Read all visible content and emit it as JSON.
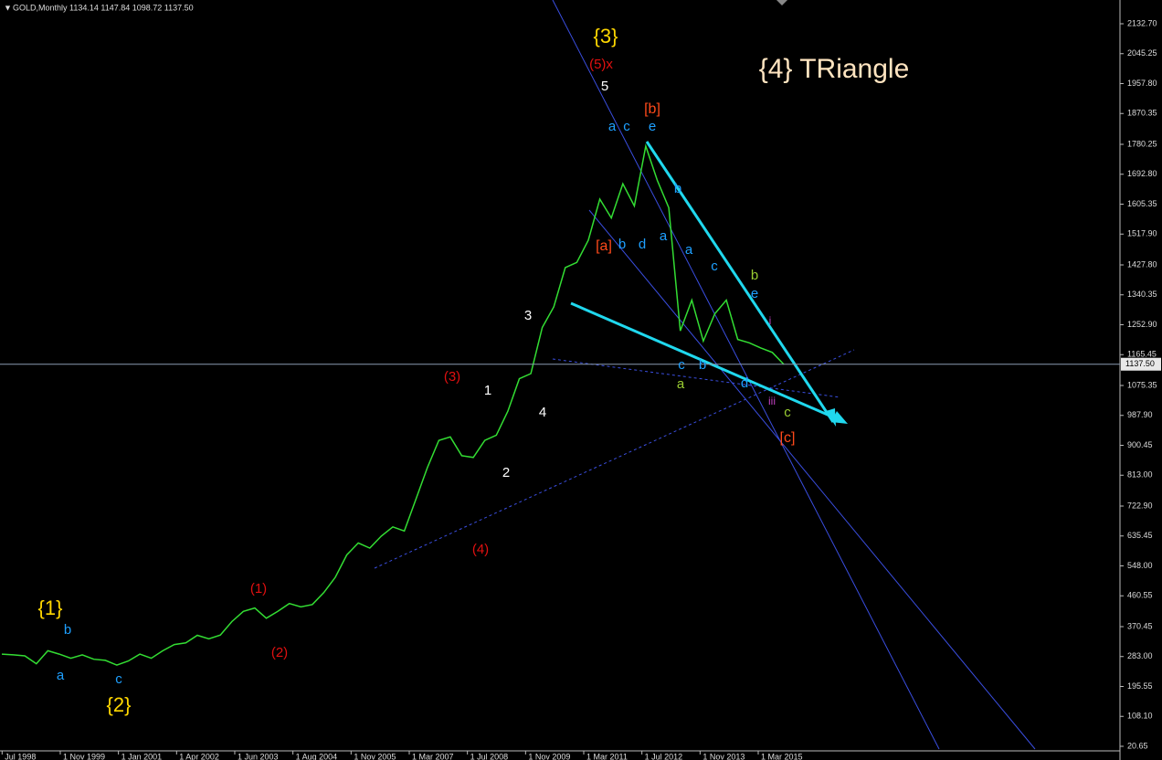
{
  "chart_data": {
    "type": "line",
    "header": "GOLD,Monthly  1134.14 1147.84 1098.72 1137.50",
    "color": "#33dd33",
    "values": [
      290,
      288,
      285,
      262,
      300,
      290,
      278,
      288,
      275,
      272,
      258,
      270,
      290,
      278,
      300,
      318,
      323,
      345,
      335,
      346,
      385,
      415,
      425,
      395,
      415,
      438,
      428,
      435,
      470,
      515,
      580,
      615,
      600,
      635,
      662,
      650,
      742,
      835,
      915,
      925,
      870,
      865,
      915,
      930,
      1000,
      1095,
      1110,
      1245,
      1305,
      1420,
      1435,
      1500,
      1620,
      1565,
      1665,
      1600,
      1775,
      1675,
      1595,
      1235,
      1325,
      1205,
      1285,
      1325,
      1210,
      1200,
      1185,
      1172,
      1137
    ],
    "ylim": [
      20.65,
      2132.7
    ],
    "yticks": [
      20.65,
      {
        "value": 108.1,
        "label": "108.10"
      },
      195.55,
      {
        "value": 283,
        "label": "283.00"
      },
      370.45,
      460.55,
      {
        "value": 548,
        "label": "548.00"
      },
      635.45,
      {
        "value": 722.9,
        "label": "722.90"
      },
      {
        "value": 813,
        "label": "813.00"
      },
      900.45,
      {
        "value": 987.9,
        "label": "987.90"
      },
      1075.35,
      1165.45,
      {
        "value": 1252.9,
        "label": "1252.90"
      },
      1340.35,
      {
        "value": 1427.8,
        "label": "1427.80"
      },
      {
        "value": 1517.9,
        "label": "1517.90"
      },
      1605.35,
      {
        "value": 1692.8,
        "label": "1692.80"
      },
      1780.25,
      1870.35,
      {
        "value": 1957.8,
        "label": "1957.80"
      },
      2045.25,
      {
        "value": 2132.7,
        "label": "2132.70"
      }
    ],
    "current_price": {
      "value": 1137.5,
      "label": "1137.50"
    },
    "xticks": [
      "Jul 1998",
      "1 Nov 1999",
      "1 Jan 2001",
      "1 Apr 2002",
      "1 Jun 2003",
      "1 Aug 2004",
      "1 Nov 2005",
      "1 Mar 2007",
      "1 Jul 2008",
      "1 Nov 2009",
      "1 Mar 2011",
      "1 Jul 2012",
      "1 Nov 2013",
      "1 Mar 2015"
    ],
    "annotations": [
      {
        "text": "{3}",
        "color": "#ffd700"
      },
      {
        "text": "(5)x",
        "color": "#e01010"
      },
      {
        "text": "5",
        "color": "#ffffff"
      },
      {
        "text": "[b]",
        "color": "#ff4a1a"
      },
      {
        "text": "a",
        "color": "#1ea0ff"
      },
      {
        "text": "c",
        "color": "#1ea0ff"
      },
      {
        "text": "e",
        "color": "#1ea0ff"
      },
      {
        "text": "{4} TRiangle",
        "color": "#ffe4c0"
      },
      {
        "text": "[a]",
        "color": "#ff4a1a"
      },
      {
        "text": "b",
        "color": "#1ea0ff"
      },
      {
        "text": "d",
        "color": "#1ea0ff"
      },
      {
        "text": "a",
        "color": "#1ea0ff"
      },
      {
        "text": "a",
        "color": "#1ea0ff"
      },
      {
        "text": "b",
        "color": "#1ea0ff"
      },
      {
        "text": "c",
        "color": "#1ea0ff"
      },
      {
        "text": "b",
        "color": "#9acd32"
      },
      {
        "text": "e",
        "color": "#1ea0ff"
      },
      {
        "text": "i",
        "color": "#c040c0"
      },
      {
        "text": "c",
        "color": "#1ea0ff"
      },
      {
        "text": "b",
        "color": "#1ea0ff"
      },
      {
        "text": "a",
        "color": "#9acd32"
      },
      {
        "text": "d",
        "color": "#1ea0ff"
      },
      {
        "text": "iii",
        "color": "#c040c0"
      },
      {
        "text": "c",
        "color": "#9acd32"
      },
      {
        "text": "[c]",
        "color": "#ff4a1a"
      },
      {
        "text": "3",
        "color": "#ffffff"
      },
      {
        "text": "1",
        "color": "#ffffff"
      },
      {
        "text": "4",
        "color": "#ffffff"
      },
      {
        "text": "2",
        "color": "#ffffff"
      },
      {
        "text": "(3)",
        "color": "#e01010"
      },
      {
        "text": "(4)",
        "color": "#e01010"
      },
      {
        "text": "(1)",
        "color": "#e01010"
      },
      {
        "text": "(2)",
        "color": "#e01010"
      },
      {
        "text": "{1}",
        "color": "#ffd700"
      },
      {
        "text": "b",
        "color": "#1ea0ff"
      },
      {
        "text": "a",
        "color": "#1ea0ff"
      },
      {
        "text": "c",
        "color": "#1ea0ff"
      },
      {
        "text": "{2}",
        "color": "#ffd700"
      }
    ]
  }
}
